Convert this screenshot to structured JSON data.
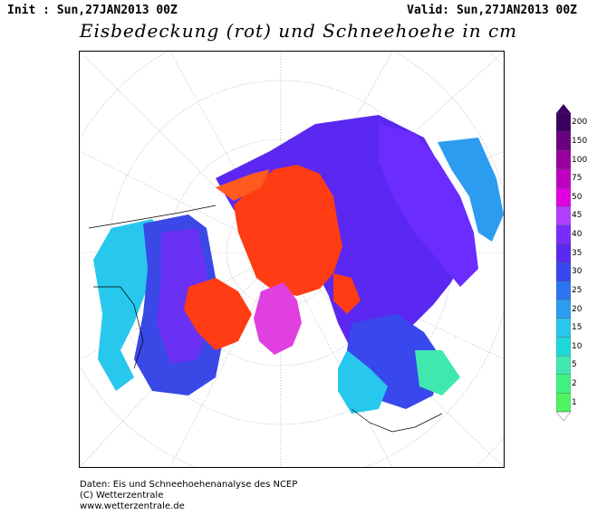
{
  "header": {
    "init": "Init : Sun,27JAN2013 00Z",
    "valid": "Valid: Sun,27JAN2013 00Z",
    "title": "Eisbedeckung (rot) und Schneehoehe in cm"
  },
  "legend": {
    "labels": [
      "200",
      "150",
      "100",
      "75",
      "50",
      "45",
      "40",
      "35",
      "30",
      "25",
      "20",
      "15",
      "10",
      "5",
      "2",
      "1"
    ],
    "colors": [
      "#3c0060",
      "#6a0080",
      "#98009c",
      "#c000c0",
      "#e000e0",
      "#b040ff",
      "#7a2cff",
      "#5a28f0",
      "#3848ec",
      "#2c74f0",
      "#2c9cf0",
      "#28c8ee",
      "#20d8d8",
      "#40e8b0",
      "#40f080",
      "#50f460"
    ]
  },
  "map": {
    "ice_color": "#ff3c14",
    "greenland_color": "#e040e0"
  },
  "footer": {
    "line1": "Daten: Eis und Schneehoehenanalyse des NCEP",
    "line2": "(C) Wetterzentrale",
    "line3": "www.wetterzentrale.de"
  }
}
